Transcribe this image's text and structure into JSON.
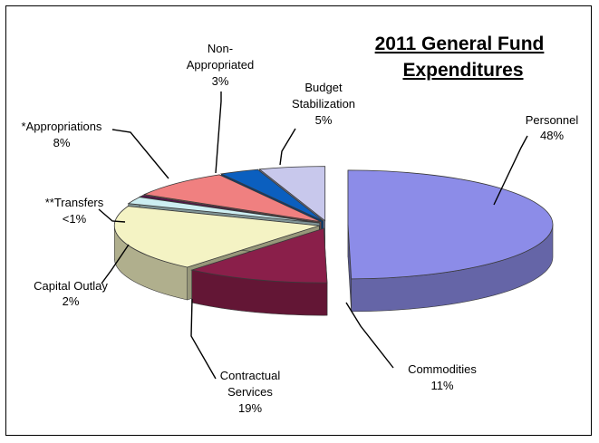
{
  "chart_data": {
    "type": "pie",
    "style": "3d-exploded",
    "title_lines": [
      "2011 General Fund",
      "Expenditures"
    ],
    "slices": [
      {
        "name": "Personnel",
        "label": "Personnel",
        "pct_label": "48%",
        "value": 48,
        "color": "#8c8ce8"
      },
      {
        "name": "Commodities",
        "label": "Commodities",
        "pct_label": "11%",
        "value": 11,
        "color": "#8a1f4a"
      },
      {
        "name": "Contractual Services",
        "label_lines": [
          "Contractual",
          "Services"
        ],
        "pct_label": "19%",
        "value": 19,
        "color": "#f4f3c4"
      },
      {
        "name": "Capital Outlay",
        "label": "Capital Outlay",
        "pct_label": "2%",
        "value": 2,
        "color": "#cdeef2"
      },
      {
        "name": "**Transfers",
        "label": "**Transfers",
        "pct_label": "<1%",
        "value": 0.5,
        "color": "#5a0a4e"
      },
      {
        "name": "*Appropriations",
        "label": "*Appropriations",
        "pct_label": "8%",
        "value": 8,
        "color": "#f08080"
      },
      {
        "name": "Non-Appropriated",
        "label_lines": [
          "Non-",
          "Appropriated"
        ],
        "pct_label": "3%",
        "value": 3,
        "color": "#0b5fbf"
      },
      {
        "name": "Budget Stabilization",
        "label_lines": [
          "Budget",
          "Stabilization"
        ],
        "pct_label": "5%",
        "value": 5,
        "color": "#c8c8ec"
      }
    ]
  }
}
